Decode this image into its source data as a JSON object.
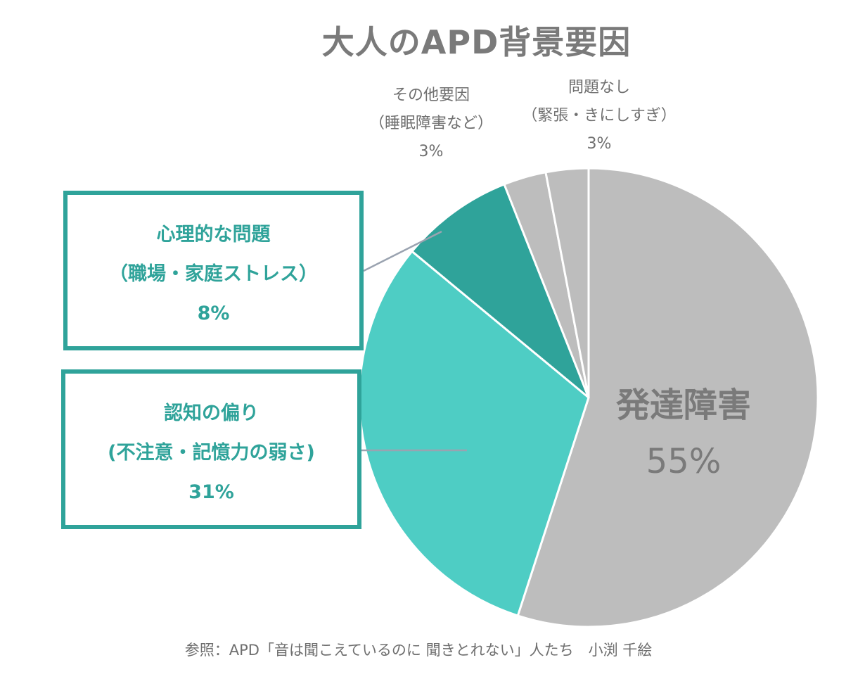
{
  "chart_data": {
    "type": "pie",
    "title": "大人のAPD背景要因",
    "slices": [
      {
        "label": "発達障害",
        "value": 55,
        "percent_label": "55%",
        "color": "#bdbdbd"
      },
      {
        "label_lines": [
          "認知の偏り",
          "(不注意・記憶力の弱さ)"
        ],
        "value": 31,
        "percent_label": "31%",
        "color": "#4ecdc4"
      },
      {
        "label_lines": [
          "心理的な問題",
          "（職場・家庭ストレス）"
        ],
        "value": 8,
        "percent_label": "8%",
        "color": "#2fa39a"
      },
      {
        "label_lines": [
          "その他要因",
          "（睡眠障害など）"
        ],
        "value": 3,
        "percent_label": "3%",
        "color": "#bdbdbd"
      },
      {
        "label_lines": [
          "問題なし",
          "（緊張・きにしすぎ）"
        ],
        "value": 3,
        "percent_label": "3%",
        "color": "#bdbdbd"
      }
    ]
  },
  "source": "参照：APD「音は聞こえているのに 聞きとれない」人たち　小渕 千絵"
}
